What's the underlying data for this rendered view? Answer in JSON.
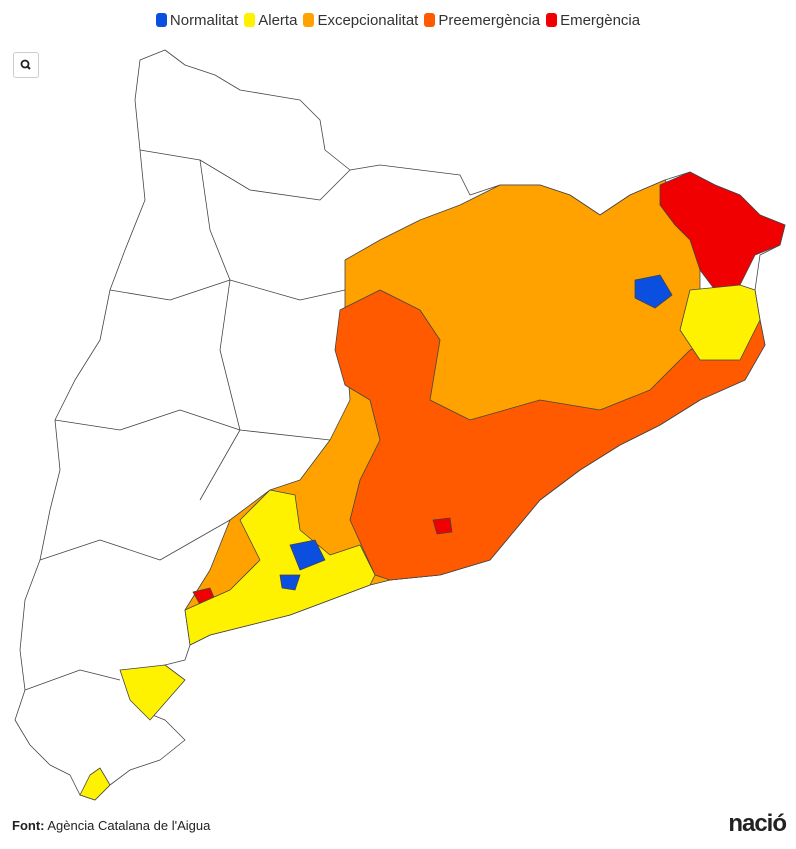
{
  "legend": [
    {
      "label": "Normalitat",
      "color": "#0b4fe0"
    },
    {
      "label": "Alerta",
      "color": "#fff200"
    },
    {
      "label": "Excepcionalitat",
      "color": "#ffa200"
    },
    {
      "label": "Preemergència",
      "color": "#ff5a00"
    },
    {
      "label": "Emergència",
      "color": "#f00000"
    }
  ],
  "footer": {
    "label": "Font:",
    "source": "Agència Catalana de l'Aigua"
  },
  "logo": "nació"
}
